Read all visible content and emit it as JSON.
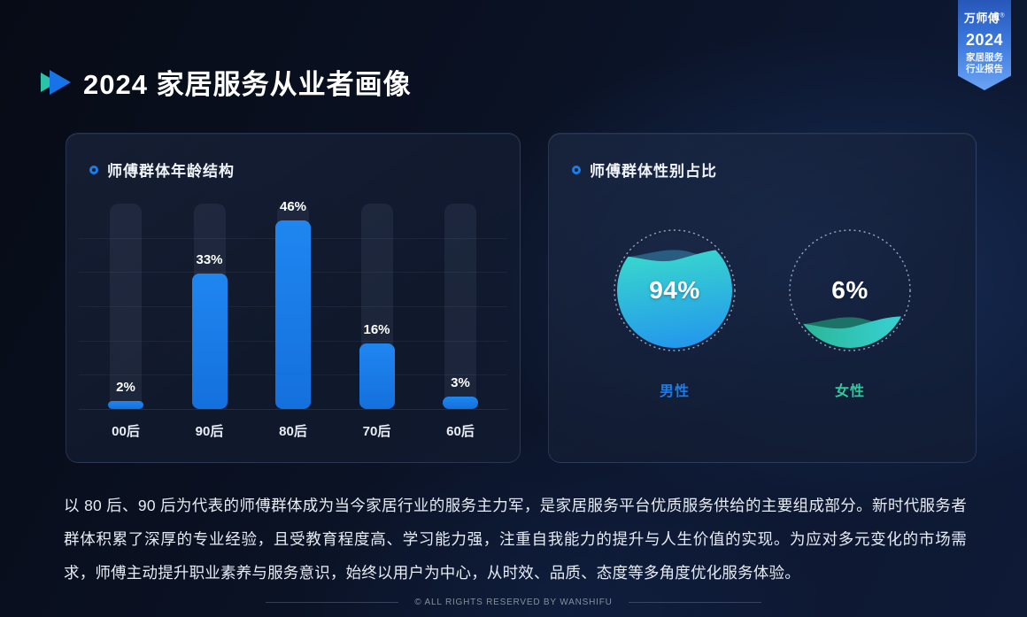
{
  "badge": {
    "brand": "万师傅",
    "reg": "®",
    "year": "2024",
    "line1": "家居服务",
    "line2": "行业报告"
  },
  "page_title": "2024 家居服务从业者画像",
  "cards": {
    "age": {
      "title": "师傅群体年龄结构"
    },
    "gender": {
      "title": "师傅群体性别占比"
    }
  },
  "chart_data": [
    {
      "type": "bar",
      "title": "师傅群体年龄结构",
      "categories": [
        "00后",
        "90后",
        "80后",
        "70后",
        "60后"
      ],
      "values": [
        2,
        33,
        46,
        16,
        3
      ],
      "unit": "%",
      "ylim": [
        0,
        50
      ],
      "grid": true,
      "legend": "none",
      "bar_color": "#1778e8",
      "track_color": "rgba(190,205,235,0.075)"
    },
    {
      "type": "pie",
      "style": "liquid-fill-ball",
      "title": "师傅群体性别占比",
      "categories": [
        "男性",
        "女性"
      ],
      "values": [
        94,
        6
      ],
      "unit": "%",
      "display_values": [
        "94%",
        "6%"
      ],
      "colors": [
        "#1d7ce8",
        "#2fc99c"
      ]
    }
  ],
  "colors": {
    "accent_blue": "#1778e8",
    "accent_teal": "#2fc99c",
    "male_wave_top": "#3adccb",
    "male_wave_bottom": "#1f8bf2",
    "female_wave_left": "#26ad82",
    "female_wave_right": "#3cd9e6"
  },
  "paragraph": "以 80 后、90 后为代表的师傅群体成为当今家居行业的服务主力军，是家居服务平台优质服务供给的主要组成部分。新时代服务者群体积累了深厚的专业经验，且受教育程度高、学习能力强，注重自我能力的提升与人生价值的实现。为应对多元变化的市场需求，师傅主动提升职业素养与服务意识，始终以用户为中心，从时效、品质、态度等多角度优化服务体验。",
  "footer": "© ALL RIGHTS RESERVED BY WANSHIFU"
}
